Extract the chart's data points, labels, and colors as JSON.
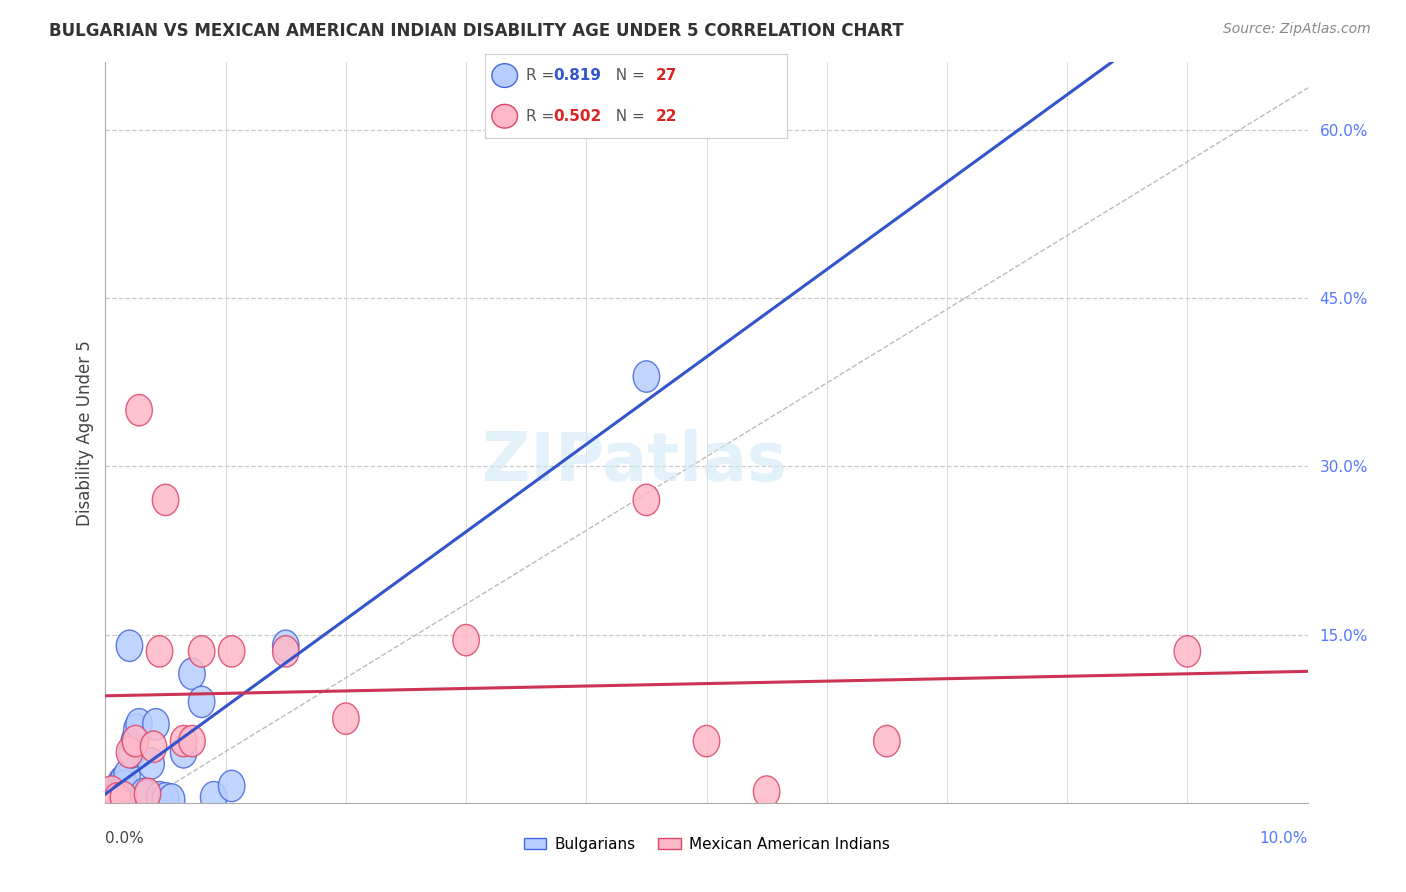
{
  "title": "BULGARIAN VS MEXICAN AMERICAN INDIAN DISABILITY AGE UNDER 5 CORRELATION CHART",
  "source": "Source: ZipAtlas.com",
  "ylabel": "Disability Age Under 5",
  "xmin": 0.0,
  "xmax": 10.0,
  "ymin": 0.0,
  "ymax": 66.0,
  "yticks": [
    15,
    30,
    45,
    60
  ],
  "grid_color": "#cccccc",
  "background_color": "#ffffff",
  "blue_r": 0.819,
  "blue_n": 27,
  "pink_r": 0.502,
  "pink_n": 22,
  "blue_fill": "#b8ceff",
  "pink_fill": "#ffb8c8",
  "blue_edge": "#4466dd",
  "pink_edge": "#dd4466",
  "blue_line": "#3355cc",
  "pink_line": "#cc3355",
  "watermark_color": "#ddeeff",
  "bulgarians_x": [
    0.05,
    0.08,
    0.1,
    0.12,
    0.13,
    0.15,
    0.16,
    0.18,
    0.2,
    0.22,
    0.24,
    0.26,
    0.28,
    0.32,
    0.35,
    0.38,
    0.42,
    0.45,
    0.5,
    0.55,
    0.65,
    0.72,
    0.8,
    0.9,
    1.05,
    1.5,
    4.5
  ],
  "bulgarians_y": [
    0.3,
    0.5,
    0.8,
    1.2,
    1.8,
    2.0,
    1.5,
    2.5,
    14.0,
    4.5,
    5.5,
    6.5,
    7.0,
    0.8,
    0.6,
    3.5,
    7.0,
    0.5,
    0.4,
    0.3,
    4.5,
    11.5,
    9.0,
    0.5,
    1.5,
    14.0,
    38.0
  ],
  "mexican_x": [
    0.05,
    0.1,
    0.15,
    0.2,
    0.25,
    0.28,
    0.35,
    0.4,
    0.45,
    0.5,
    0.65,
    0.72,
    0.8,
    1.05,
    1.5,
    2.0,
    3.0,
    4.5,
    5.0,
    5.5,
    6.5,
    9.0
  ],
  "mexican_y": [
    1.0,
    0.4,
    0.5,
    4.5,
    5.5,
    35.0,
    0.8,
    5.0,
    13.5,
    27.0,
    5.5,
    5.5,
    13.5,
    13.5,
    13.5,
    7.5,
    14.5,
    27.0,
    5.5,
    1.0,
    5.5,
    13.5
  ]
}
